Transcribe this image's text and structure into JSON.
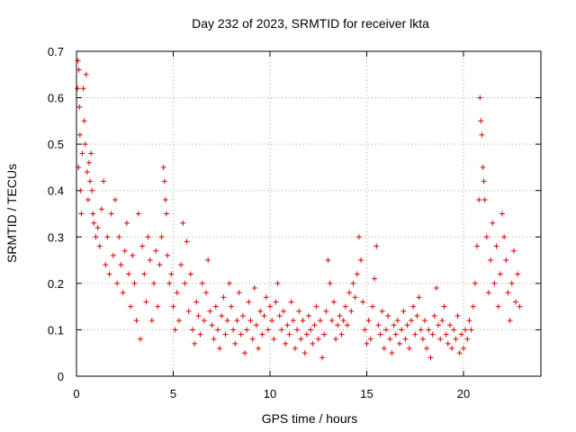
{
  "colors": {
    "series": "#e00000",
    "grid": "#a0a0a0",
    "axis": "#000000"
  },
  "chart_data": {
    "type": "scatter",
    "title": "Day 232 of 2023, SRMTID for receiver lkta",
    "xlabel": "GPS time / hours",
    "ylabel": "SRMTID / TECUs",
    "xlim": [
      0,
      24
    ],
    "ylim": [
      0,
      0.7
    ],
    "xticks": [
      0,
      5,
      10,
      15,
      20
    ],
    "yticks": [
      0,
      0.1,
      0.2,
      0.3,
      0.4,
      0.5,
      0.6,
      0.7
    ],
    "grid": true,
    "marker": "plus",
    "series": [
      {
        "name": "SRMTID",
        "color": "#e00000",
        "points": [
          [
            0.05,
            0.62
          ],
          [
            0.08,
            0.68
          ],
          [
            0.12,
            0.66
          ],
          [
            0.15,
            0.58
          ],
          [
            0.18,
            0.52
          ],
          [
            0.1,
            0.45
          ],
          [
            0.2,
            0.4
          ],
          [
            0.25,
            0.35
          ],
          [
            0.3,
            0.48
          ],
          [
            0.35,
            0.62
          ],
          [
            0.4,
            0.55
          ],
          [
            0.45,
            0.5
          ],
          [
            0.5,
            0.65
          ],
          [
            0.55,
            0.44
          ],
          [
            0.6,
            0.38
          ],
          [
            0.65,
            0.46
          ],
          [
            0.7,
            0.42
          ],
          [
            0.75,
            0.48
          ],
          [
            0.8,
            0.4
          ],
          [
            0.85,
            0.35
          ],
          [
            0.9,
            0.33
          ],
          [
            1.0,
            0.3
          ],
          [
            1.1,
            0.32
          ],
          [
            1.2,
            0.28
          ],
          [
            1.3,
            0.36
          ],
          [
            1.4,
            0.42
          ],
          [
            1.5,
            0.24
          ],
          [
            1.6,
            0.3
          ],
          [
            1.7,
            0.22
          ],
          [
            1.8,
            0.35
          ],
          [
            1.9,
            0.26
          ],
          [
            2.0,
            0.38
          ],
          [
            2.1,
            0.2
          ],
          [
            2.2,
            0.3
          ],
          [
            2.3,
            0.24
          ],
          [
            2.4,
            0.18
          ],
          [
            2.5,
            0.27
          ],
          [
            2.6,
            0.33
          ],
          [
            2.7,
            0.22
          ],
          [
            2.8,
            0.15
          ],
          [
            2.9,
            0.26
          ],
          [
            3.0,
            0.2
          ],
          [
            3.1,
            0.12
          ],
          [
            3.2,
            0.35
          ],
          [
            3.3,
            0.08
          ],
          [
            3.4,
            0.28
          ],
          [
            3.5,
            0.22
          ],
          [
            3.6,
            0.16
          ],
          [
            3.7,
            0.3
          ],
          [
            3.8,
            0.25
          ],
          [
            3.9,
            0.12
          ],
          [
            4.0,
            0.2
          ],
          [
            4.1,
            0.27
          ],
          [
            4.2,
            0.15
          ],
          [
            4.3,
            0.24
          ],
          [
            4.4,
            0.3
          ],
          [
            4.5,
            0.45
          ],
          [
            4.55,
            0.42
          ],
          [
            4.6,
            0.38
          ],
          [
            4.65,
            0.35
          ],
          [
            4.7,
            0.26
          ],
          [
            4.8,
            0.2
          ],
          [
            4.9,
            0.22
          ],
          [
            5.0,
            0.15
          ],
          [
            5.1,
            0.1
          ],
          [
            5.2,
            0.18
          ],
          [
            5.3,
            0.12
          ],
          [
            5.4,
            0.24
          ],
          [
            5.5,
            0.33
          ],
          [
            5.6,
            0.2
          ],
          [
            5.7,
            0.29
          ],
          [
            5.8,
            0.14
          ],
          [
            5.9,
            0.22
          ],
          [
            6.0,
            0.1
          ],
          [
            6.1,
            0.07
          ],
          [
            6.2,
            0.16
          ],
          [
            6.3,
            0.13
          ],
          [
            6.4,
            0.09
          ],
          [
            6.5,
            0.2
          ],
          [
            6.6,
            0.12
          ],
          [
            6.7,
            0.18
          ],
          [
            6.8,
            0.25
          ],
          [
            6.9,
            0.14
          ],
          [
            7.0,
            0.11
          ],
          [
            7.1,
            0.08
          ],
          [
            7.2,
            0.15
          ],
          [
            7.3,
            0.1
          ],
          [
            7.4,
            0.06
          ],
          [
            7.5,
            0.13
          ],
          [
            7.6,
            0.17
          ],
          [
            7.7,
            0.09
          ],
          [
            7.8,
            0.12
          ],
          [
            7.9,
            0.2
          ],
          [
            8.0,
            0.15
          ],
          [
            8.1,
            0.1
          ],
          [
            8.2,
            0.07
          ],
          [
            8.3,
            0.12
          ],
          [
            8.4,
            0.18
          ],
          [
            8.5,
            0.09
          ],
          [
            8.6,
            0.13
          ],
          [
            8.7,
            0.05
          ],
          [
            8.8,
            0.1
          ],
          [
            8.9,
            0.16
          ],
          [
            9.0,
            0.12
          ],
          [
            9.1,
            0.08
          ],
          [
            9.2,
            0.19
          ],
          [
            9.3,
            0.11
          ],
          [
            9.4,
            0.06
          ],
          [
            9.5,
            0.14
          ],
          [
            9.6,
            0.09
          ],
          [
            9.7,
            0.13
          ],
          [
            9.8,
            0.17
          ],
          [
            9.9,
            0.1
          ],
          [
            10.0,
            0.15
          ],
          [
            10.1,
            0.12
          ],
          [
            10.2,
            0.08
          ],
          [
            10.3,
            0.16
          ],
          [
            10.4,
            0.2
          ],
          [
            10.5,
            0.13
          ],
          [
            10.6,
            0.1
          ],
          [
            10.7,
            0.14
          ],
          [
            10.8,
            0.07
          ],
          [
            10.9,
            0.11
          ],
          [
            11.0,
            0.09
          ],
          [
            11.1,
            0.16
          ],
          [
            11.2,
            0.12
          ],
          [
            11.3,
            0.06
          ],
          [
            11.4,
            0.1
          ],
          [
            11.5,
            0.14
          ],
          [
            11.6,
            0.08
          ],
          [
            11.7,
            0.12
          ],
          [
            11.8,
            0.05
          ],
          [
            11.9,
            0.09
          ],
          [
            12.0,
            0.13
          ],
          [
            12.1,
            0.1
          ],
          [
            12.2,
            0.07
          ],
          [
            12.3,
            0.11
          ],
          [
            12.4,
            0.15
          ],
          [
            12.5,
            0.08
          ],
          [
            12.6,
            0.12
          ],
          [
            12.7,
            0.04
          ],
          [
            12.8,
            0.09
          ],
          [
            12.9,
            0.14
          ],
          [
            13.0,
            0.25
          ],
          [
            13.1,
            0.2
          ],
          [
            13.2,
            0.12
          ],
          [
            13.3,
            0.16
          ],
          [
            13.4,
            0.08
          ],
          [
            13.5,
            0.11
          ],
          [
            13.6,
            0.13
          ],
          [
            13.7,
            0.09
          ],
          [
            13.8,
            0.12
          ],
          [
            13.9,
            0.15
          ],
          [
            14.0,
            0.11
          ],
          [
            14.1,
            0.18
          ],
          [
            14.2,
            0.14
          ],
          [
            14.3,
            0.2
          ],
          [
            14.4,
            0.17
          ],
          [
            14.5,
            0.22
          ],
          [
            14.6,
            0.3
          ],
          [
            14.7,
            0.25
          ],
          [
            14.8,
            0.16
          ],
          [
            14.9,
            0.1
          ],
          [
            15.0,
            0.07
          ],
          [
            15.1,
            0.12
          ],
          [
            15.2,
            0.08
          ],
          [
            15.3,
            0.15
          ],
          [
            15.4,
            0.21
          ],
          [
            15.5,
            0.28
          ],
          [
            15.6,
            0.11
          ],
          [
            15.7,
            0.09
          ],
          [
            15.8,
            0.14
          ],
          [
            15.9,
            0.06
          ],
          [
            16.0,
            0.1
          ],
          [
            16.1,
            0.13
          ],
          [
            16.2,
            0.08
          ],
          [
            16.3,
            0.05
          ],
          [
            16.4,
            0.11
          ],
          [
            16.5,
            0.09
          ],
          [
            16.6,
            0.12
          ],
          [
            16.7,
            0.07
          ],
          [
            16.8,
            0.1
          ],
          [
            16.9,
            0.14
          ],
          [
            17.0,
            0.08
          ],
          [
            17.1,
            0.11
          ],
          [
            17.2,
            0.06
          ],
          [
            17.3,
            0.12
          ],
          [
            17.4,
            0.15
          ],
          [
            17.5,
            0.09
          ],
          [
            17.6,
            0.13
          ],
          [
            17.7,
            0.17
          ],
          [
            17.8,
            0.1
          ],
          [
            17.9,
            0.08
          ],
          [
            18.0,
            0.12
          ],
          [
            18.1,
            0.06
          ],
          [
            18.2,
            0.1
          ],
          [
            18.3,
            0.04
          ],
          [
            18.4,
            0.09
          ],
          [
            18.5,
            0.13
          ],
          [
            18.6,
            0.19
          ],
          [
            18.7,
            0.11
          ],
          [
            18.8,
            0.08
          ],
          [
            18.9,
            0.12
          ],
          [
            19.0,
            0.15
          ],
          [
            19.1,
            0.09
          ],
          [
            19.2,
            0.07
          ],
          [
            19.3,
            0.11
          ],
          [
            19.4,
            0.06
          ],
          [
            19.5,
            0.1
          ],
          [
            19.6,
            0.08
          ],
          [
            19.7,
            0.13
          ],
          [
            19.8,
            0.05
          ],
          [
            19.9,
            0.09
          ],
          [
            20.0,
            0.06
          ],
          [
            20.1,
            0.1
          ],
          [
            20.2,
            0.08
          ],
          [
            20.3,
            0.12
          ],
          [
            20.4,
            0.1
          ],
          [
            20.5,
            0.15
          ],
          [
            20.6,
            0.2
          ],
          [
            20.7,
            0.28
          ],
          [
            20.8,
            0.38
          ],
          [
            20.85,
            0.6
          ],
          [
            20.9,
            0.55
          ],
          [
            20.95,
            0.52
          ],
          [
            21.0,
            0.45
          ],
          [
            21.05,
            0.42
          ],
          [
            21.1,
            0.38
          ],
          [
            21.2,
            0.3
          ],
          [
            21.3,
            0.18
          ],
          [
            21.4,
            0.25
          ],
          [
            21.5,
            0.33
          ],
          [
            21.6,
            0.2
          ],
          [
            21.7,
            0.28
          ],
          [
            21.8,
            0.15
          ],
          [
            21.9,
            0.22
          ],
          [
            22.0,
            0.35
          ],
          [
            22.1,
            0.3
          ],
          [
            22.2,
            0.25
          ],
          [
            22.3,
            0.18
          ],
          [
            22.4,
            0.12
          ],
          [
            22.5,
            0.2
          ],
          [
            22.6,
            0.27
          ],
          [
            22.7,
            0.16
          ],
          [
            22.8,
            0.22
          ],
          [
            22.9,
            0.15
          ]
        ]
      }
    ]
  }
}
